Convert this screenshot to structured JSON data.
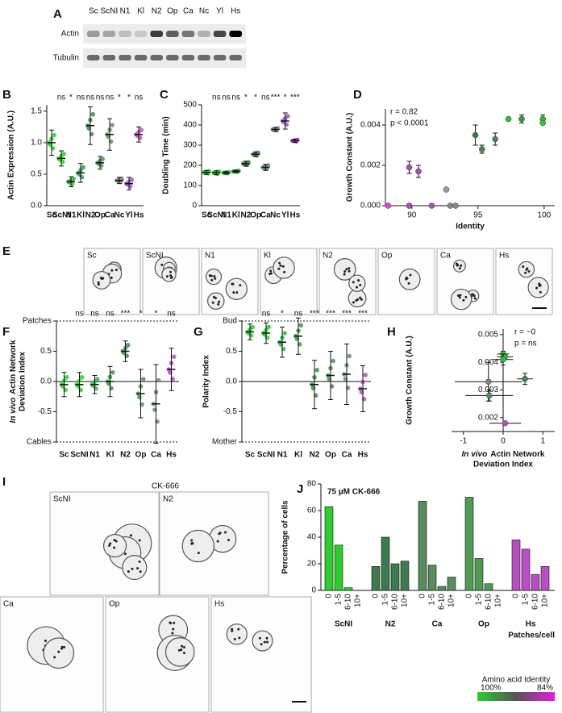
{
  "blot": {
    "panel": "A",
    "lanes": [
      "Sc",
      "ScNI",
      "N1",
      "Kl",
      "N2",
      "Op",
      "Ca",
      "Nc",
      "Yl",
      "Hs"
    ],
    "rows": [
      "Actin",
      "Tubulin"
    ]
  },
  "micrographs_e": {
    "panel": "E",
    "labels": [
      "Sc",
      "ScNI",
      "N1",
      "Kl",
      "N2",
      "Op",
      "Ca",
      "Hs"
    ]
  },
  "micrographs_i": {
    "panel": "I",
    "title": "CK-666",
    "labels": [
      "ScNI",
      "N2",
      "Ca",
      "Op",
      "Hs"
    ]
  },
  "identity_legend": {
    "title": "Amino acid Identity",
    "ticks": [
      "100%",
      "84%"
    ]
  },
  "chart_data": [
    {
      "type": "dot",
      "panel": "B",
      "y_label": "Actin Expression (A.U.)",
      "categories": [
        "Sc",
        "ScNI",
        "N1",
        "Kl",
        "N2",
        "Op",
        "Ca",
        "Nc",
        "Yl",
        "Hs"
      ],
      "values": [
        1.0,
        0.75,
        0.38,
        0.52,
        1.27,
        0.68,
        1.13,
        0.4,
        0.35,
        1.13
      ],
      "errors": [
        0.2,
        0.12,
        0.08,
        0.15,
        0.3,
        0.1,
        0.25,
        0.05,
        0.1,
        0.12
      ],
      "colors": [
        "#2ecc2e",
        "#2ecc2e",
        "#39b54a",
        "#3a9a4a",
        "#3d8a4f",
        "#4f8f5f",
        "#6a8f6e",
        "#888888",
        "#9b59b6",
        "#b84fc0"
      ],
      "significance": [
        null,
        "ns",
        "*",
        "ns",
        "ns",
        "ns",
        "ns",
        "*",
        "*",
        "ns"
      ],
      "ylim": [
        0,
        1.6
      ],
      "yticks": [
        {
          "value": 0,
          "label": "0.0"
        },
        0.5,
        {
          "value": 1,
          "label": "1.0"
        },
        1.5
      ]
    },
    {
      "type": "dot",
      "panel": "C",
      "y_label": "Doubling Time (min)",
      "categories": [
        "Sc",
        "ScNI",
        "N1",
        "Kl",
        "N2",
        "Op",
        "Ca",
        "Nc",
        "Yl",
        "Hs"
      ],
      "values": [
        165,
        163,
        163,
        170,
        208,
        255,
        190,
        378,
        420,
        322
      ],
      "errors": [
        10,
        10,
        6,
        5,
        12,
        12,
        15,
        10,
        40,
        8
      ],
      "colors": [
        "#2ecc2e",
        "#2ecc2e",
        "#39b54a",
        "#3a9a4a",
        "#3d8a4f",
        "#4f8f5f",
        "#6a8f6e",
        "#888888",
        "#9b59b6",
        "#b84fc0"
      ],
      "significance": [
        null,
        "ns",
        "ns",
        "ns",
        "*",
        "*",
        "ns",
        "***",
        "*",
        "***"
      ],
      "ylim": [
        0,
        500
      ],
      "yticks": [
        0,
        100,
        200,
        300,
        400,
        500
      ]
    },
    {
      "type": "scatter",
      "panel": "D",
      "x_label": "Identity",
      "y_label": "Growth Constant (A.U.)",
      "annotations": [
        "r = 0.82",
        "p < 0.0001"
      ],
      "x": [
        88.2,
        89.8,
        90.5,
        89.8,
        91.5,
        92.6,
        92.9,
        93.3,
        94.8,
        95.3,
        96.3,
        97.3,
        98.3,
        99.9,
        99.9
      ],
      "values": [
        0,
        0.0019,
        0.0017,
        0,
        0,
        0.0008,
        0,
        0,
        0.0035,
        0.0028,
        0.0033,
        0.0043,
        0.0043,
        0.0043,
        0.0041
      ],
      "errors": [
        null,
        0.0003,
        0.0003,
        null,
        null,
        null,
        null,
        null,
        0.0005,
        0.0002,
        0.0003,
        null,
        0.0002,
        0.0002,
        null
      ],
      "colors": [
        "#e040e0",
        "#a050b0",
        "#a050b0",
        "#a050b0",
        "#9060a0",
        "#999999",
        "#888888",
        "#888888",
        "#3d7a4f",
        "#3d8a4f",
        "#4a8a5a",
        "#33bb33",
        "#339933",
        "#33bb33",
        "#33cc33"
      ],
      "xlim": [
        88,
        100.8
      ],
      "xticks": [
        90,
        95,
        100
      ],
      "ylim": [
        0,
        0.0048
      ],
      "yticks": [
        {
          "value": 0,
          "label": "0.000"
        },
        0.002,
        0.004
      ]
    },
    {
      "type": "dot",
      "panel": "F",
      "y_label_italic": "In vivo",
      "y_label": [
        "Actin Network",
        "Deviation Index"
      ],
      "categories": [
        "Sc",
        "ScNI",
        "N1",
        "Kl",
        "N2",
        "Op",
        "Ca",
        "Hs"
      ],
      "values": [
        -0.05,
        -0.05,
        -0.05,
        0,
        0.5,
        -0.2,
        -0.37,
        0.2
      ],
      "errors": [
        0.2,
        0.2,
        0.15,
        0.25,
        0.17,
        0.4,
        0.65,
        0.35
      ],
      "colors": [
        "#2ecc2e",
        "#2ecc2e",
        "#39b54a",
        "#3a9a4a",
        "#3d8a4f",
        "#4f8f5f",
        "#6a8f6e",
        "#b84fc0"
      ],
      "significance": [
        null,
        "ns",
        "ns",
        "ns",
        "***",
        "*",
        "*",
        "ns"
      ],
      "zero_line": true,
      "ylim": [
        -1,
        1
      ],
      "yticks": [
        {
          "value": -1,
          "label": "Cables"
        },
        -0.5,
        {
          "value": 0,
          "label": "0.0"
        },
        0.5,
        {
          "value": 1,
          "label": "Patches"
        }
      ]
    },
    {
      "type": "dot",
      "panel": "G",
      "y_label": "Polarity Index",
      "categories": [
        "Sc",
        "ScNI",
        "N1",
        "Kl",
        "N2",
        "Op",
        "Ca",
        "Hs"
      ],
      "values": [
        0.82,
        0.8,
        0.65,
        0.75,
        -0.05,
        0.1,
        0.12,
        -0.12
      ],
      "errors": [
        0.13,
        0.17,
        0.25,
        0.3,
        0.4,
        0.4,
        0.5,
        0.38
      ],
      "colors": [
        "#2ecc2e",
        "#2ecc2e",
        "#39b54a",
        "#3a9a4a",
        "#3d8a4f",
        "#4f8f5f",
        "#6a8f6e",
        "#b84fc0"
      ],
      "significance": [
        null,
        "ns",
        "*",
        "ns",
        "***",
        "***",
        "***",
        "***"
      ],
      "zero_line": true,
      "ylim": [
        -1,
        1
      ],
      "yticks": [
        {
          "value": -1,
          "label": "Mother"
        },
        -0.5,
        {
          "value": 0,
          "label": "0.0"
        },
        0.5,
        {
          "value": 1,
          "label": "Bud"
        }
      ]
    },
    {
      "type": "scatter",
      "panel": "H",
      "y_label": "Growth  Constant  (A.U.)",
      "x_label_italic": "In vivo",
      "x_label": [
        "Actin Network",
        "Deviation Index"
      ],
      "annotations": [
        "r = ~0",
        "p = ns"
      ],
      "x": [
        0,
        0.05,
        0,
        -0.37,
        0.55,
        -0.35,
        0.05
      ],
      "x_errors": [
        0.15,
        0.2,
        0.25,
        0.85,
        0.2,
        0.6,
        0.4
      ],
      "values": [
        0.0043,
        0.0042,
        0.0041,
        0.0033,
        0.0034,
        0.0028,
        0.0018
      ],
      "errors": [
        0.0001,
        null,
        0.0002,
        0.0007,
        0.0002,
        0.0002,
        null
      ],
      "colors": [
        "#2ecc2e",
        "#33bb33",
        "#39b54a",
        "#6a8f6e",
        "#3d8a4f",
        "#4f8f5f",
        "#b84fc0"
      ],
      "xlim": [
        -1.3,
        1.3
      ],
      "xticks": [
        -1,
        0,
        1
      ],
      "ylim": [
        0.0015,
        0.0052
      ],
      "yticks": [
        0.002,
        0.003,
        0.004,
        0.005
      ]
    },
    {
      "type": "bar",
      "panel": "J",
      "title": "75 µM CK-666",
      "x_label": "Patches/cell",
      "y_label": "Percentage of cells",
      "categories": [
        "0",
        "1-5",
        "6-10",
        "10+"
      ],
      "series": [
        {
          "name": "ScNI",
          "color": "#2ecc2e",
          "values": [
            63,
            34,
            2,
            0
          ]
        },
        {
          "name": "N2",
          "color": "#3d7a4f",
          "values": [
            18,
            40,
            20,
            22
          ]
        },
        {
          "name": "Ca",
          "color": "#5a8a60",
          "values": [
            67,
            19,
            3,
            10
          ]
        },
        {
          "name": "Op",
          "color": "#4f9a55",
          "values": [
            70,
            24,
            5,
            0
          ]
        },
        {
          "name": "Hs",
          "color": "#b84fc0",
          "values": [
            38,
            31,
            12,
            18
          ]
        }
      ],
      "ylim": [
        0,
        80
      ],
      "yticks": [
        0,
        20,
        40,
        60,
        80
      ]
    }
  ]
}
